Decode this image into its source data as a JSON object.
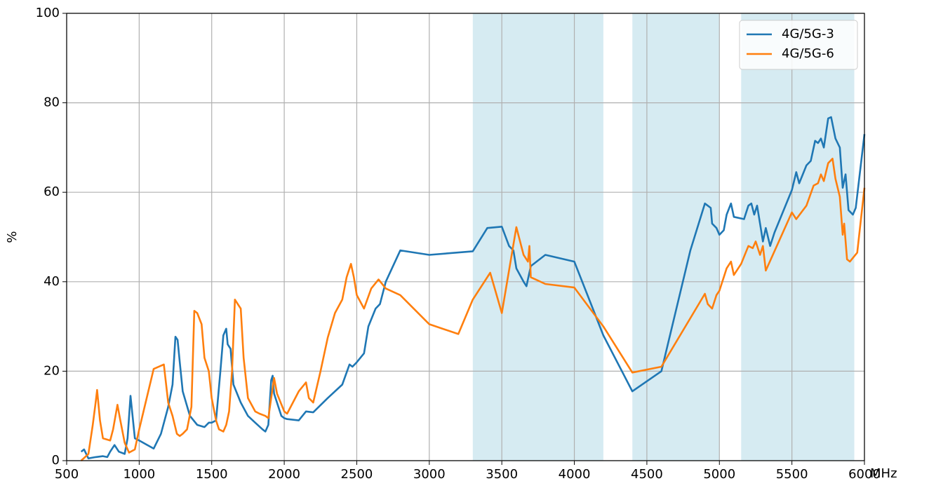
{
  "chart_data": {
    "type": "line",
    "xlabel": "MHz",
    "ylabel": "%",
    "xlim": [
      500,
      6000
    ],
    "ylim": [
      0,
      100
    ],
    "xticks": [
      500,
      1000,
      1500,
      2000,
      2500,
      3000,
      3500,
      4000,
      4500,
      5000,
      5500,
      6000
    ],
    "yticks": [
      0,
      20,
      40,
      60,
      80,
      100
    ],
    "grid": true,
    "legend": "upper right",
    "shaded_ranges": [
      [
        3300,
        4200
      ],
      [
        4400,
        5000
      ],
      [
        5150,
        5930
      ]
    ],
    "shade_color": "#add8e6",
    "series": [
      {
        "name": "4G/5G-3",
        "color": "#1f77b4",
        "x": [
          600,
          620,
          650,
          700,
          750,
          780,
          800,
          830,
          860,
          900,
          920,
          940,
          970,
          1000,
          1100,
          1150,
          1200,
          1230,
          1250,
          1265,
          1280,
          1300,
          1350,
          1400,
          1450,
          1480,
          1500,
          1530,
          1560,
          1580,
          1600,
          1610,
          1630,
          1650,
          1700,
          1750,
          1800,
          1850,
          1870,
          1890,
          1910,
          1920,
          1930,
          1960,
          1980,
          2000,
          2020,
          2100,
          2150,
          2200,
          2300,
          2400,
          2450,
          2470,
          2500,
          2550,
          2580,
          2630,
          2660,
          2700,
          2800,
          3000,
          3300,
          3400,
          3500,
          3550,
          3580,
          3600,
          3650,
          3670,
          3700,
          3800,
          4000,
          4200,
          4400,
          4600,
          4800,
          4900,
          4920,
          4940,
          4950,
          4980,
          5000,
          5030,
          5050,
          5080,
          5100,
          5170,
          5200,
          5220,
          5240,
          5260,
          5280,
          5300,
          5320,
          5350,
          5380,
          5500,
          5530,
          5550,
          5600,
          5630,
          5660,
          5680,
          5700,
          5720,
          5750,
          5770,
          5800,
          5830,
          5850,
          5870,
          5890,
          5920,
          5940,
          6000
        ],
        "values": [
          2,
          2.5,
          0.5,
          0.8,
          1,
          0.8,
          2,
          3.5,
          2,
          1.5,
          5,
          14.5,
          5,
          4.5,
          2.7,
          6,
          12,
          17,
          27.7,
          27,
          22,
          15.5,
          10,
          8,
          7.5,
          8.5,
          8.5,
          9,
          20,
          28,
          29.5,
          26,
          25,
          17,
          13,
          10,
          8.5,
          7,
          6.5,
          8,
          18,
          19,
          15,
          12,
          10,
          9.5,
          9.3,
          9,
          11,
          10.8,
          14,
          17,
          21.5,
          21,
          22,
          24,
          30,
          34,
          35,
          40,
          47,
          46,
          46.8,
          52,
          52.3,
          48,
          47,
          43,
          40,
          39,
          43.5,
          46,
          44.5,
          28,
          15.5,
          20,
          47,
          57.5,
          57,
          56.5,
          53,
          52,
          50.5,
          51.5,
          55,
          57.5,
          54.5,
          54,
          57,
          57.5,
          55,
          57,
          53,
          49,
          52,
          48,
          51,
          60.5,
          64.5,
          62,
          66,
          67,
          71.5,
          71,
          72,
          70,
          76.5,
          76.8,
          72,
          70,
          61,
          64,
          56,
          55,
          56.5,
          73
        ]
      },
      {
        "name": "4G/5G-6",
        "color": "#ff7f0e",
        "x": [
          600,
          650,
          680,
          700,
          710,
          730,
          750,
          800,
          820,
          850,
          870,
          900,
          930,
          970,
          1000,
          1100,
          1170,
          1200,
          1230,
          1260,
          1280,
          1300,
          1330,
          1360,
          1380,
          1400,
          1430,
          1450,
          1480,
          1500,
          1530,
          1550,
          1580,
          1600,
          1620,
          1640,
          1660,
          1680,
          1700,
          1720,
          1750,
          1800,
          1830,
          1870,
          1890,
          1930,
          1950,
          2000,
          2020,
          2100,
          2150,
          2170,
          2200,
          2250,
          2300,
          2350,
          2400,
          2430,
          2460,
          2480,
          2500,
          2550,
          2600,
          2650,
          2700,
          2800,
          3000,
          3200,
          3300,
          3420,
          3500,
          3600,
          3650,
          3680,
          3690,
          3700,
          3800,
          4000,
          4200,
          4400,
          4600,
          4900,
          4920,
          4950,
          4980,
          5000,
          5050,
          5080,
          5100,
          5150,
          5200,
          5230,
          5250,
          5280,
          5300,
          5320,
          5500,
          5530,
          5600,
          5650,
          5680,
          5700,
          5720,
          5750,
          5780,
          5800,
          5830,
          5850,
          5860,
          5880,
          5900,
          5950,
          6000
        ],
        "values": [
          0,
          1.5,
          8,
          13,
          15.8,
          9,
          5,
          4.5,
          7,
          12.5,
          9,
          4,
          1.8,
          2.5,
          7,
          20.5,
          21.5,
          13,
          10,
          6,
          5.5,
          6,
          7,
          12,
          33.5,
          33,
          30.5,
          23,
          20,
          14,
          9,
          7,
          6.5,
          8,
          11,
          20,
          36,
          35,
          34,
          23,
          14,
          11,
          10.5,
          10,
          9.5,
          18.5,
          15,
          11,
          10.5,
          15.5,
          17.5,
          14,
          13,
          20,
          27.5,
          33,
          36,
          41,
          44,
          41,
          37,
          34,
          38.5,
          40.5,
          38.5,
          37,
          30.5,
          28.3,
          36,
          42,
          33,
          52.2,
          46,
          44.5,
          48,
          41,
          39.5,
          38.7,
          30,
          19.7,
          21,
          37.3,
          35,
          34,
          37,
          38,
          43,
          44.5,
          41.5,
          44,
          48,
          47.5,
          49,
          46,
          48,
          42.5,
          55.5,
          54,
          57,
          61.5,
          62,
          64,
          62.5,
          66.5,
          67.5,
          63,
          59,
          50.5,
          53,
          45,
          44.5,
          46.5,
          61
        ]
      }
    ]
  }
}
